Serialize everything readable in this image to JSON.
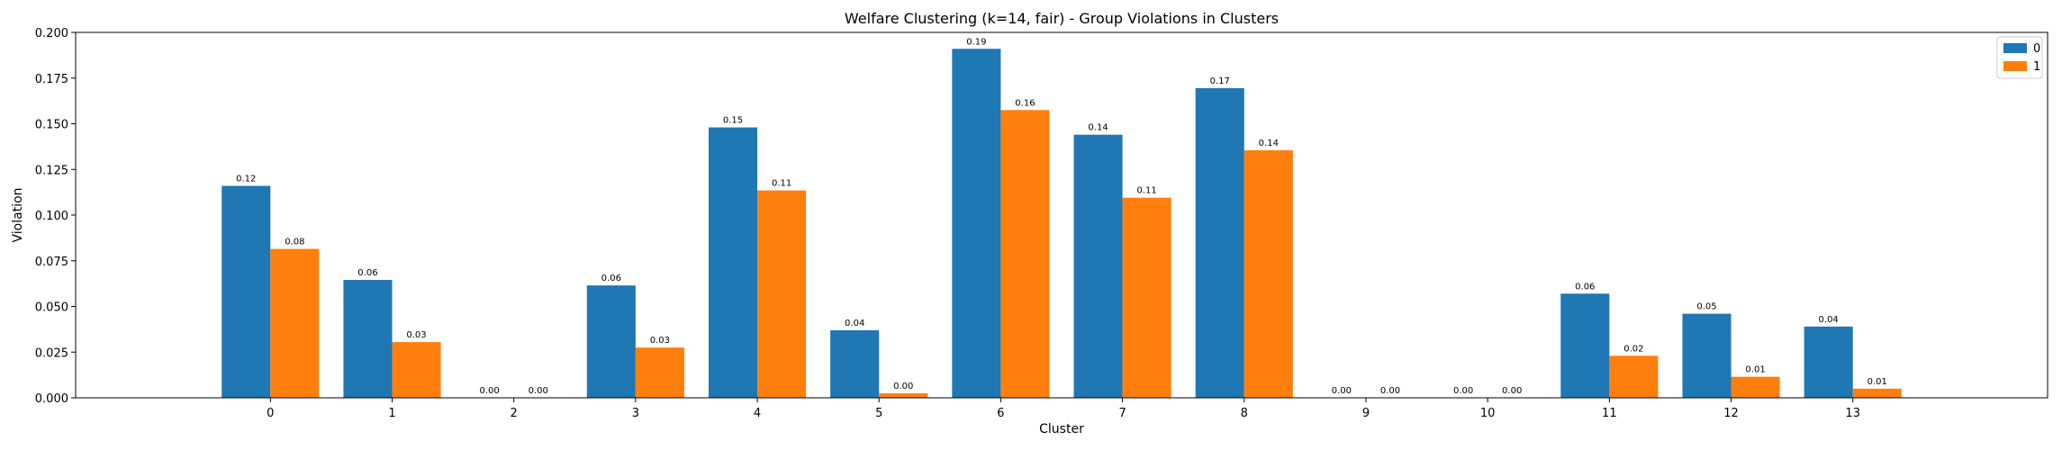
{
  "chart_data": {
    "type": "bar",
    "title": "Welfare Clustering (k=14, fair) - Group Violations in Clusters",
    "xlabel": "Cluster",
    "ylabel": "Violation",
    "categories": [
      "0",
      "1",
      "2",
      "3",
      "4",
      "5",
      "6",
      "7",
      "8",
      "9",
      "10",
      "11",
      "12",
      "13"
    ],
    "series": [
      {
        "name": "0",
        "color": "#1f77b4",
        "values": [
          0.116,
          0.0645,
          0.0,
          0.0615,
          0.148,
          0.037,
          0.191,
          0.144,
          0.1695,
          0.0,
          0.0,
          0.057,
          0.046,
          0.039
        ],
        "labels": [
          "0.12",
          "0.06",
          "0.00",
          "0.06",
          "0.15",
          "0.04",
          "0.19",
          "0.14",
          "0.17",
          "0.00",
          "0.00",
          "0.06",
          "0.05",
          "0.04"
        ]
      },
      {
        "name": "1",
        "color": "#ff7f0e",
        "values": [
          0.0815,
          0.0305,
          0.0,
          0.0275,
          0.1135,
          0.0025,
          0.1575,
          0.1095,
          0.1355,
          0.0,
          0.0,
          0.023,
          0.0115,
          0.005
        ],
        "labels": [
          "0.08",
          "0.03",
          "0.00",
          "0.03",
          "0.11",
          "0.00",
          "0.16",
          "0.11",
          "0.14",
          "0.00",
          "0.00",
          "0.02",
          "0.01",
          "0.01"
        ]
      }
    ],
    "ylim": [
      0,
      0.2
    ],
    "yticks": [
      "0.000",
      "0.025",
      "0.050",
      "0.075",
      "0.100",
      "0.125",
      "0.150",
      "0.175",
      "0.200"
    ],
    "grid": false,
    "legend": "top-right"
  }
}
